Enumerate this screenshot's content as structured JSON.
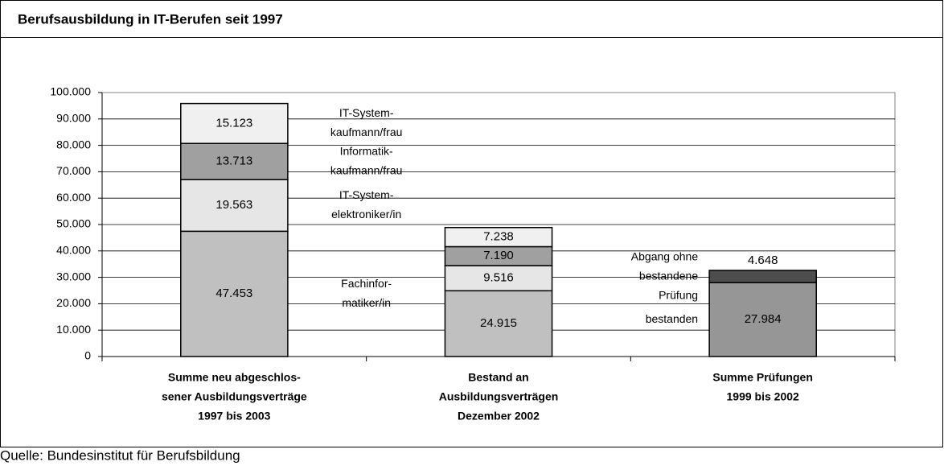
{
  "chart_data": {
    "type": "stacked_bar",
    "title": "Berufsausbildung in IT-Berufen seit 1997",
    "source": "Quelle: Bundesinstitut für Berufsbildung",
    "categories": [
      [
        "Summe neu abgeschlos-",
        "sener Ausbildungsverträge",
        "1997 bis 2003"
      ],
      [
        "Bestand an",
        "Ausbildungsverträgen",
        "Dezember 2002"
      ],
      [
        "Summe Prüfungen",
        "1999 bis 2002"
      ]
    ],
    "series": [
      {
        "name": [
          "Fachinfor-",
          "matiker/in"
        ],
        "color": "#c0c0c0",
        "values": [
          47453,
          24915,
          null
        ],
        "value_labels": [
          "47.453",
          "24.915",
          null
        ]
      },
      {
        "name": [
          "IT-System-",
          "elektroniker/in"
        ],
        "color": "#e6e6e6",
        "values": [
          19563,
          9516,
          null
        ],
        "value_labels": [
          "19.563",
          "9.516",
          null
        ]
      },
      {
        "name": [
          "Informatik-",
          "kaufmann/frau"
        ],
        "color": "#a0a0a0",
        "values": [
          13713,
          7190,
          null
        ],
        "value_labels": [
          "13.713",
          "7.190",
          null
        ]
      },
      {
        "name": [
          "IT-System-",
          "kaufmann/frau"
        ],
        "color": "#f0f0f0",
        "values": [
          15123,
          7238,
          null
        ],
        "value_labels": [
          "15.123",
          "7.238",
          null
        ]
      },
      {
        "name": [
          "bestanden"
        ],
        "color": "#969696",
        "values": [
          null,
          null,
          27984
        ],
        "value_labels": [
          null,
          null,
          "27.984"
        ]
      },
      {
        "name": [
          "Abgang ohne",
          "bestandene",
          "Prüfung"
        ],
        "color": "#4d4d4d",
        "values": [
          null,
          null,
          4648
        ],
        "value_labels": [
          null,
          null,
          "4.648"
        ]
      }
    ],
    "ylim": [
      0,
      100000
    ],
    "yticks": [
      0,
      {
        "value": 10000,
        "label": "10.000"
      },
      {
        "value": 20000,
        "label": "20.000"
      },
      {
        "value": 30000,
        "label": "30.000"
      },
      {
        "value": 40000,
        "label": "40.000"
      },
      {
        "value": 50000,
        "label": "50.000"
      },
      {
        "value": 60000,
        "label": "60.000"
      },
      {
        "value": 70000,
        "label": "70.000"
      },
      {
        "value": 80000,
        "label": "80.000"
      },
      {
        "value": 90000,
        "label": "90.000"
      },
      {
        "value": 100000,
        "label": "100.000"
      }
    ],
    "grid": true
  }
}
